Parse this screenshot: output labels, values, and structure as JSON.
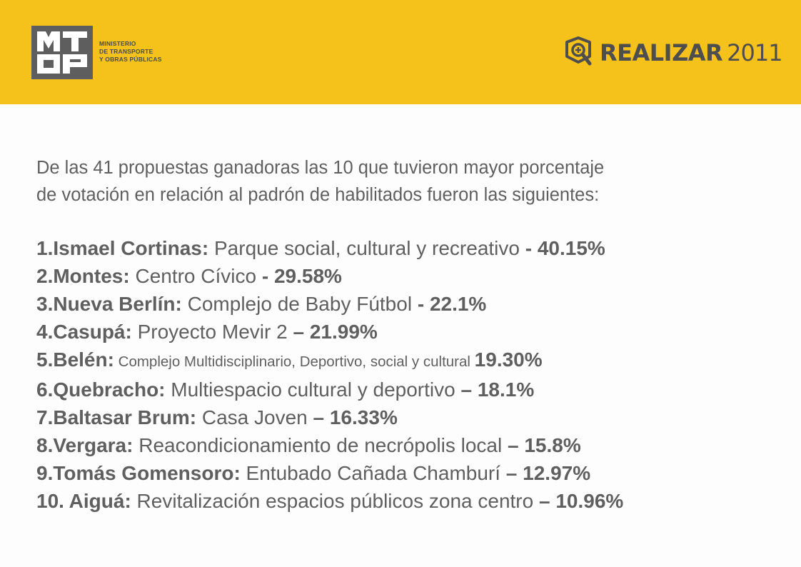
{
  "header": {
    "logo_letters": "MTOP",
    "ministry_lines": [
      "MINISTERIO",
      "DE TRANSPORTE",
      "Y OBRAS PÚBLICAS"
    ],
    "brand_name": "REALIZAR",
    "brand_year": "2011",
    "brand_color": "#f5c21b"
  },
  "intro": {
    "line1": "De las 41 propuestas ganadoras las 10 que tuvieron mayor porcentaje",
    "line2": "de votación en relación al padrón de habilitados fueron las siguientes:"
  },
  "items": [
    {
      "num": "1.",
      "place": "Ismael Cortinas:",
      "project": " Parque social, cultural y recreativo ",
      "sep": "- ",
      "pct": "40.15%"
    },
    {
      "num": "2.",
      "place": "Montes:",
      "project": " Centro Cívico ",
      "sep": "- ",
      "pct": "29.58%"
    },
    {
      "num": "3.",
      "place": "Nueva Berlín:",
      "project": " Complejo de Baby Fútbol ",
      "sep": "- ",
      "pct": "22.1%"
    },
    {
      "num": "4.",
      "place": "Casupá:",
      "project": " Proyecto Mevir 2 ",
      "sep": "– ",
      "pct": "21.99%"
    },
    {
      "num": "5.",
      "place": "Belén:",
      "project": " Complejo Multidisciplinario, Deportivo, social y cultural ",
      "sep": " ",
      "pct": "19.30%"
    },
    {
      "num": "6.",
      "place": "Quebracho:",
      "project": " Multiespacio cultural y deportivo ",
      "sep": "– ",
      "pct": "18.1%"
    },
    {
      "num": "7.",
      "place": "Baltasar Brum:",
      "project": " Casa Joven ",
      "sep": "– ",
      "pct": "16.33%"
    },
    {
      "num": "8.",
      "place": "Vergara:",
      "project": " Reacondicionamiento de necrópolis local ",
      "sep": "– ",
      "pct": "15.8%"
    },
    {
      "num": "9.",
      "place": "Tomás Gomensoro:",
      "project": " Entubado Cañada Chamburí ",
      "sep": "– ",
      "pct": "12.97%"
    },
    {
      "num": "10. ",
      "place": "Aiguá:",
      "project": " Revitalización espacios públicos zona centro ",
      "sep": "– ",
      "pct": "10.96%"
    }
  ]
}
